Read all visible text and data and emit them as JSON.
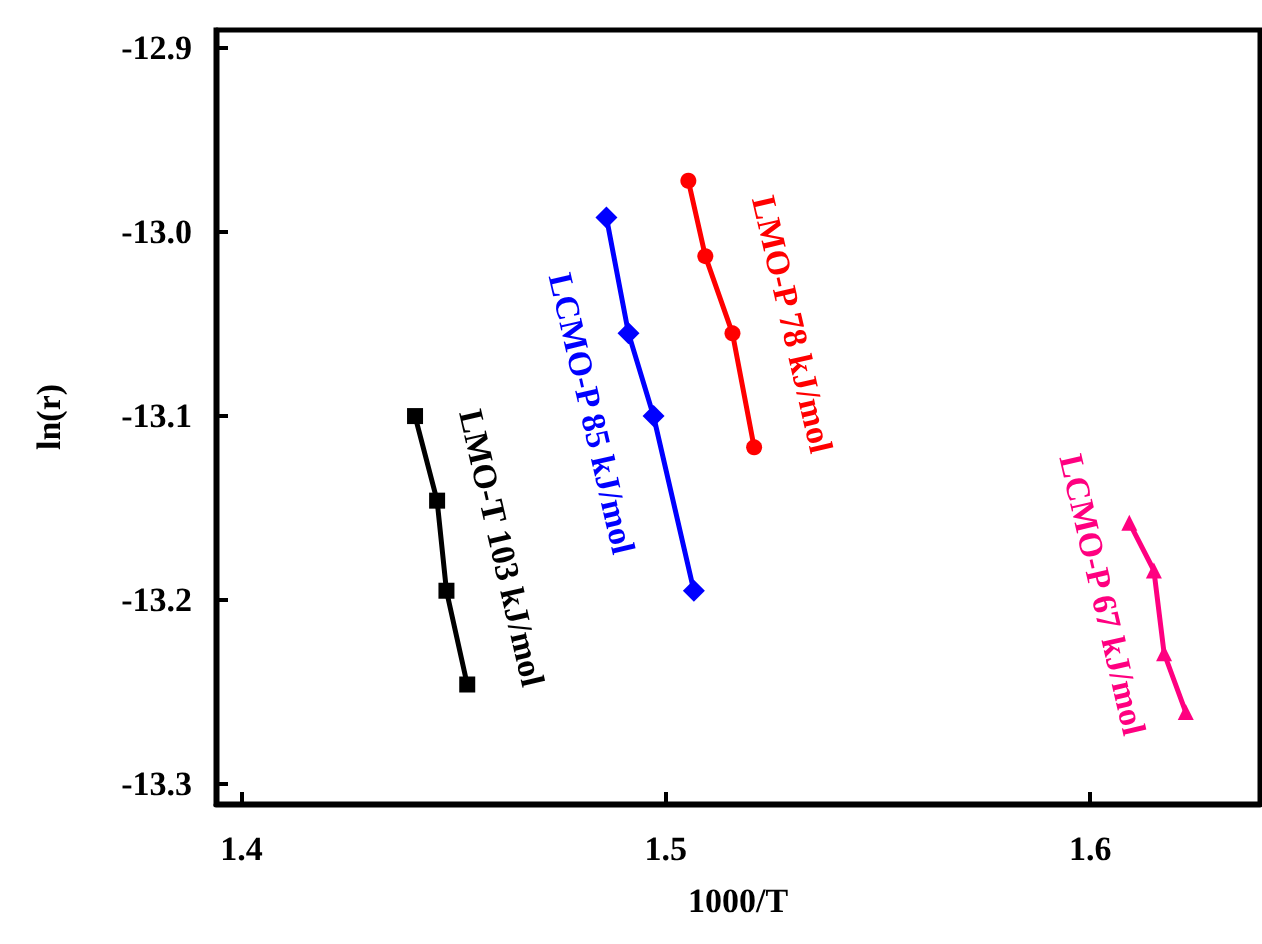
{
  "chart_data": {
    "type": "line",
    "xlabel": "1000/T",
    "ylabel": "ln(r)",
    "xlim": [
      1.394,
      1.64
    ],
    "xticks": [
      1.4,
      1.5,
      1.6
    ],
    "ylim": [
      -13.311,
      -12.89
    ],
    "yticks": [
      -12.9,
      {
        "value": -13.0,
        "label": "-13.0"
      },
      -13.1,
      -13.2,
      -13.3
    ],
    "grid": false,
    "legend": false,
    "line_style": "solid",
    "series": [
      {
        "name": "LMO-T 103 kJ/mol",
        "color": "#000000",
        "marker": "square",
        "x": [
          1.4409,
          1.4461,
          1.4483,
          1.4532
        ],
        "values": [
          -13.1,
          -13.146,
          -13.195,
          -13.246
        ]
      },
      {
        "name": "LCMO-P 85 kJ/mol",
        "color": "#0000ff",
        "marker": "diamond",
        "x": [
          1.486,
          1.4912,
          1.4971,
          1.5066
        ],
        "values": [
          -12.992,
          -13.055,
          -13.1,
          -13.195
        ]
      },
      {
        "name": "LMO-P 78 kJ/mol",
        "color": "#ff0000",
        "marker": "circle",
        "x": [
          1.5053,
          1.5093,
          1.5157,
          1.5208
        ],
        "values": [
          -12.972,
          -13.013,
          -13.055,
          -13.117
        ]
      },
      {
        "name": "LCMO-P 67 kJ/mol",
        "color": "#ff0080",
        "marker": "triangle",
        "x": [
          1.6092,
          1.615,
          1.6174,
          1.6225
        ],
        "values": [
          -13.158,
          -13.184,
          -13.229,
          -13.261
        ]
      }
    ]
  }
}
